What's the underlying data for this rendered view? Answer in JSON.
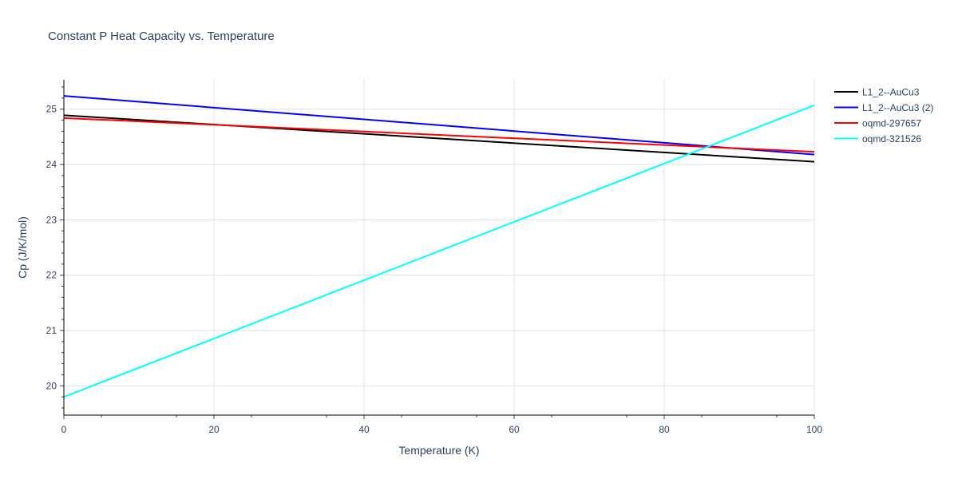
{
  "chart_data": {
    "type": "line",
    "title": "Constant P Heat Capacity vs. Temperature",
    "xlabel": "Temperature (K)",
    "ylabel": "Cp (J/K/mol)",
    "xlim": [
      0,
      100
    ],
    "ylim": [
      19.47,
      25.53
    ],
    "xticks": [
      0,
      20,
      40,
      60,
      80,
      100
    ],
    "yticks": [
      20,
      21,
      22,
      23,
      24,
      25
    ],
    "grid": true,
    "legend_position": "right",
    "series": [
      {
        "name": "L1_2--AuCu3",
        "color": "#000000",
        "x": [
          0,
          100
        ],
        "y": [
          24.89,
          24.05
        ]
      },
      {
        "name": "L1_2--AuCu3 (2)",
        "color": "#0000ff",
        "x": [
          0,
          100
        ],
        "y": [
          25.24,
          24.18
        ]
      },
      {
        "name": "oqmd-297657",
        "color": "#ff0000",
        "x": [
          0,
          100
        ],
        "y": [
          24.84,
          24.23
        ]
      },
      {
        "name": "oqmd-321526",
        "color": "#00ffff",
        "x": [
          0,
          100
        ],
        "y": [
          19.8,
          25.07
        ]
      }
    ]
  }
}
